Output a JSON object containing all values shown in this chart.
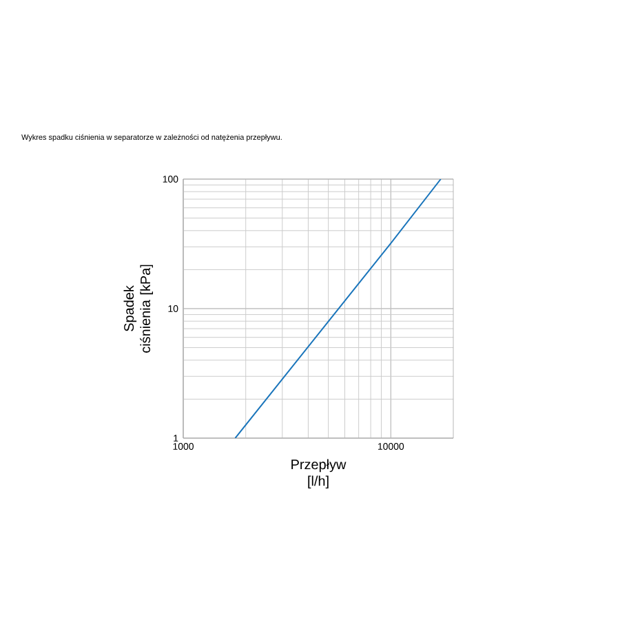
{
  "chart_data": {
    "type": "line",
    "title": "Wykres spadku ciśnienia w separatorze w zależności od natężenia przepływu.",
    "xlabel": "Przepływ [l/h]",
    "ylabel": "Spadek ciśnienia [kPa]",
    "x": [
      1780,
      10000,
      17400
    ],
    "series": [
      {
        "color": "#1a75bb",
        "values": [
          1,
          32,
          100
        ]
      }
    ],
    "xlim": [
      1000,
      20000
    ],
    "ylim": [
      1,
      100
    ],
    "xticks": [
      1000,
      10000
    ],
    "yticks": [
      1,
      10,
      100
    ],
    "log": "xy",
    "grid": true,
    "marker": "none",
    "line_style": "solid"
  }
}
